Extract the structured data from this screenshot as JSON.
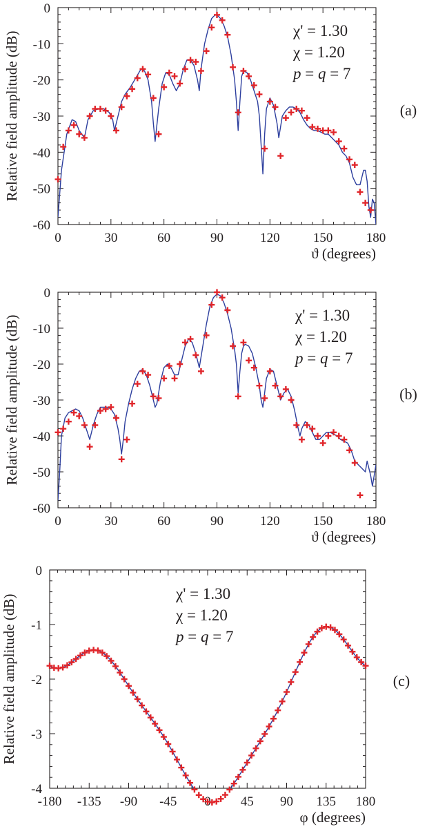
{
  "colors": {
    "curve": "#2d3f9e",
    "markers": "#e0262b",
    "axis": "#231f20"
  },
  "chart_data": [
    {
      "panel_label": "(a)",
      "type": "line",
      "xlabel": "ϑ (degrees)",
      "ylabel": "Relative field amplitude (dB)",
      "xlim": [
        0,
        180
      ],
      "ylim": [
        -60,
        0
      ],
      "xticks": [
        0,
        30,
        60,
        90,
        120,
        150,
        180
      ],
      "yticks": [
        0,
        -10,
        -20,
        -30,
        -40,
        -50,
        -60
      ],
      "annotations": [
        "χ' = 1.30",
        "χ  = 1.20",
        "p = q = 7"
      ],
      "series": [
        {
          "style": "line",
          "x": [
            0,
            2,
            5,
            8,
            10,
            12,
            15,
            17,
            20,
            23,
            26,
            29,
            31,
            32,
            34,
            36,
            38,
            41,
            44,
            47,
            49,
            51,
            53,
            54,
            55,
            57,
            59,
            61,
            63,
            65,
            67,
            69,
            71,
            73,
            75,
            77,
            79,
            80,
            81,
            83,
            85,
            87,
            89,
            90,
            92,
            94,
            96,
            98,
            100,
            101,
            102,
            103,
            104,
            105,
            107,
            109,
            111,
            113,
            114,
            115,
            116,
            117,
            118,
            120,
            122,
            124,
            125,
            126,
            127,
            129,
            131,
            133,
            135,
            137,
            139,
            141,
            143,
            145,
            147,
            149,
            151,
            153,
            155,
            157,
            159,
            161,
            163,
            165,
            167,
            169,
            171,
            172,
            173,
            174,
            175,
            176,
            177,
            178,
            179,
            180
          ],
          "y": [
            -58,
            -45,
            -35,
            -31,
            -31.5,
            -34,
            -36,
            -31,
            -28.5,
            -28,
            -28,
            -29,
            -31,
            -34,
            -30,
            -26,
            -24,
            -22,
            -19.5,
            -17,
            -17.5,
            -20,
            -26,
            -32,
            -37,
            -28,
            -21,
            -18,
            -18.5,
            -21,
            -23,
            -21,
            -17,
            -14.5,
            -14.5,
            -16,
            -20,
            -23,
            -17,
            -10,
            -6,
            -3,
            -2,
            -2,
            -3,
            -5,
            -8,
            -13,
            -20,
            -26,
            -34,
            -26,
            -19,
            -17.5,
            -18,
            -20,
            -23,
            -26,
            -30,
            -38,
            -46,
            -35,
            -28,
            -25,
            -27,
            -32,
            -36,
            -33,
            -30,
            -28.5,
            -27.5,
            -27.5,
            -28,
            -29,
            -31,
            -32.5,
            -33.5,
            -34,
            -34,
            -34.5,
            -35,
            -35,
            -36,
            -37,
            -38,
            -40,
            -41,
            -43,
            -47,
            -49,
            -49,
            -47,
            -45,
            -45,
            -48,
            -55,
            -58,
            -53,
            -54,
            -60
          ]
        },
        {
          "style": "markers",
          "x": [
            0,
            3,
            6,
            9,
            12,
            15,
            18,
            21,
            24,
            27,
            30,
            33,
            36,
            39,
            42,
            45,
            48,
            51,
            54,
            57,
            60,
            63,
            66,
            69,
            72,
            75,
            78,
            81,
            84,
            87,
            90,
            93,
            96,
            99,
            102,
            105,
            108,
            111,
            114,
            117,
            120,
            123,
            126,
            129,
            132,
            135,
            138,
            141,
            144,
            147,
            150,
            153,
            156,
            159,
            162,
            165,
            168,
            171,
            174,
            177
          ],
          "y": [
            -47.5,
            -38.5,
            -34,
            -32.5,
            -35,
            -36,
            -30,
            -28,
            -28,
            -28.5,
            -30,
            -34,
            -27.5,
            -24.5,
            -22.5,
            -19.5,
            -17,
            -18.5,
            -25,
            -35,
            -22,
            -18,
            -19,
            -21,
            -17,
            -14.5,
            -15,
            -17.5,
            -12,
            -5.5,
            -2,
            -3.5,
            -7.5,
            -16.5,
            -29,
            -17.5,
            -19,
            -21.5,
            -24,
            -39,
            -26,
            -27.5,
            -41,
            -30.5,
            -29,
            -28,
            -28.5,
            -30.5,
            -33,
            -33.5,
            -34,
            -34,
            -34.5,
            -37,
            -39,
            -42,
            -43.5,
            -51,
            -54,
            -56
          ]
        }
      ]
    },
    {
      "panel_label": "(b)",
      "type": "line",
      "xlabel": "ϑ (degrees)",
      "ylabel": "Relative field amplitude (dB)",
      "xlim": [
        0,
        180
      ],
      "ylim": [
        -60,
        0
      ],
      "xticks": [
        0,
        30,
        60,
        90,
        120,
        150,
        180
      ],
      "yticks": [
        0,
        -10,
        -20,
        -30,
        -40,
        -50,
        -60
      ],
      "annotations": [
        "χ' = 1.30",
        "χ  = 1.20",
        "p = q = 7"
      ],
      "series": [
        {
          "style": "line",
          "x": [
            0,
            1,
            2,
            4,
            6,
            8,
            10,
            12,
            14,
            16,
            18,
            20,
            22,
            24,
            26,
            28,
            30,
            32,
            34,
            35,
            36,
            37,
            38,
            40,
            42,
            44,
            46,
            48,
            50,
            52,
            54,
            55,
            56,
            58,
            60,
            62,
            64,
            66,
            68,
            70,
            72,
            74,
            76,
            78,
            80,
            82,
            84,
            86,
            88,
            90,
            92,
            94,
            96,
            98,
            100,
            101,
            102,
            103,
            104,
            105,
            106,
            108,
            110,
            112,
            114,
            115,
            116,
            117,
            118,
            120,
            122,
            124,
            126,
            128,
            130,
            132,
            134,
            136,
            137,
            138,
            140,
            142,
            144,
            146,
            148,
            150,
            152,
            154,
            156,
            158,
            160,
            162,
            164,
            166,
            168,
            170,
            172,
            174,
            175,
            176,
            177,
            178,
            180
          ],
          "y": [
            -58,
            -50,
            -40,
            -35,
            -33.5,
            -33,
            -32.5,
            -33,
            -35,
            -38,
            -41,
            -37,
            -34,
            -32,
            -32,
            -32,
            -32.5,
            -34,
            -38,
            -41,
            -45,
            -41,
            -36,
            -31,
            -27,
            -24,
            -22,
            -21.5,
            -23,
            -26,
            -30,
            -32,
            -31,
            -25,
            -21,
            -20,
            -21,
            -23,
            -23,
            -19,
            -15,
            -13,
            -14,
            -17,
            -21,
            -15,
            -9,
            -4,
            -1.5,
            -0.5,
            -1,
            -3,
            -6,
            -10,
            -16,
            -20,
            -28,
            -22,
            -17,
            -15,
            -14.5,
            -15,
            -17,
            -21,
            -26,
            -30,
            -32,
            -28,
            -24,
            -21.5,
            -22,
            -26,
            -30,
            -28,
            -27,
            -29,
            -33,
            -38,
            -40,
            -38,
            -36,
            -37,
            -39,
            -41,
            -41,
            -40,
            -39,
            -39,
            -39.5,
            -40,
            -41,
            -41.5,
            -42,
            -44,
            -47,
            -48,
            -49,
            -50,
            -47,
            -49,
            -51,
            -54,
            -48
          ]
        },
        {
          "style": "markers",
          "x": [
            0,
            3,
            6,
            9,
            12,
            15,
            18,
            21,
            24,
            27,
            30,
            33,
            36,
            39,
            42,
            45,
            48,
            51,
            54,
            57,
            60,
            63,
            66,
            69,
            72,
            75,
            78,
            81,
            84,
            87,
            90,
            93,
            96,
            99,
            102,
            105,
            108,
            111,
            114,
            117,
            120,
            123,
            126,
            129,
            132,
            135,
            138,
            141,
            144,
            147,
            150,
            153,
            156,
            159,
            162,
            165,
            168,
            171
          ],
          "y": [
            -39,
            -38,
            -36,
            -33.5,
            -34.5,
            -37,
            -43,
            -37,
            -33,
            -32.5,
            -32,
            -35,
            -46.5,
            -41,
            -31,
            -25.5,
            -22,
            -23,
            -29,
            -29.5,
            -24,
            -20.5,
            -24,
            -20,
            -14,
            -13,
            -17.5,
            -22,
            -12,
            -3.5,
            0,
            -1.5,
            -5,
            -15,
            -29,
            -14,
            -19,
            -21,
            -26,
            -29.5,
            -22,
            -26,
            -29,
            -27,
            -30,
            -37,
            -41,
            -37,
            -38,
            -40,
            -42,
            -40,
            -39,
            -40,
            -41,
            -44,
            -47.5,
            -56.5
          ]
        }
      ]
    },
    {
      "panel_label": "(c)",
      "type": "line",
      "xlabel": "φ (degrees)",
      "ylabel": "Relative field amplitude (dB)",
      "xlim": [
        -180,
        180
      ],
      "ylim": [
        -4,
        0
      ],
      "xticks": [
        -180,
        -135,
        -90,
        -45,
        0,
        45,
        90,
        135,
        180
      ],
      "yticks": [
        0,
        -1,
        -2,
        -3,
        -4
      ],
      "annotations": [
        "χ' = 1.30",
        "χ  = 1.20",
        "p = q = 7"
      ],
      "series": [
        {
          "style": "line",
          "fn": "phi_pattern"
        },
        {
          "style": "markers",
          "fn": "phi_pattern",
          "step": 5
        }
      ]
    }
  ]
}
